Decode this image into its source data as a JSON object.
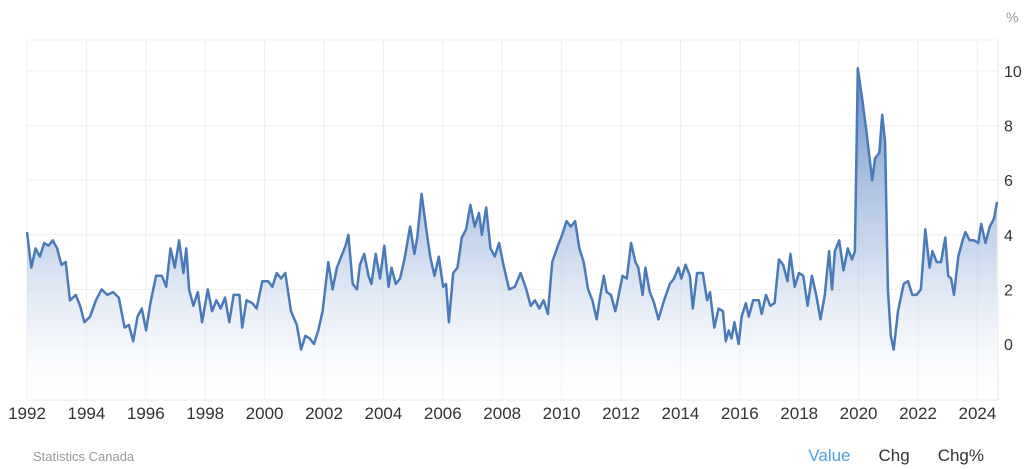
{
  "chart_data": {
    "type": "area",
    "title": "",
    "xlabel": "",
    "ylabel": "",
    "unit": "%",
    "xlim": [
      1992,
      2024.7
    ],
    "ylim": [
      -2,
      11
    ],
    "grid": true,
    "x_ticks": [
      "1992",
      "1994",
      "1996",
      "1998",
      "2000",
      "2002",
      "2004",
      "2006",
      "2008",
      "2010",
      "2012",
      "2014",
      "2016",
      "2018",
      "2020",
      "2022",
      "2024"
    ],
    "y_ticks": [
      "0",
      "2",
      "4",
      "6",
      "8",
      "10"
    ],
    "series": [
      {
        "name": "Value",
        "color": "#4a7ab8",
        "points": [
          [
            1992.0,
            4.1
          ],
          [
            1992.15,
            2.8
          ],
          [
            1992.3,
            3.5
          ],
          [
            1992.45,
            3.2
          ],
          [
            1992.6,
            3.7
          ],
          [
            1992.75,
            3.6
          ],
          [
            1992.9,
            3.8
          ],
          [
            1993.05,
            3.5
          ],
          [
            1993.2,
            2.9
          ],
          [
            1993.35,
            3.0
          ],
          [
            1993.5,
            1.6
          ],
          [
            1993.7,
            1.8
          ],
          [
            1993.85,
            1.4
          ],
          [
            1994.0,
            0.8
          ],
          [
            1994.2,
            1.0
          ],
          [
            1994.4,
            1.6
          ],
          [
            1994.6,
            2.0
          ],
          [
            1994.8,
            1.8
          ],
          [
            1995.0,
            1.9
          ],
          [
            1995.2,
            1.7
          ],
          [
            1995.4,
            0.6
          ],
          [
            1995.55,
            0.7
          ],
          [
            1995.7,
            0.1
          ],
          [
            1995.85,
            1.0
          ],
          [
            1996.0,
            1.3
          ],
          [
            1996.15,
            0.5
          ],
          [
            1996.3,
            1.5
          ],
          [
            1996.5,
            2.5
          ],
          [
            1996.7,
            2.5
          ],
          [
            1996.85,
            2.1
          ],
          [
            1997.0,
            3.5
          ],
          [
            1997.15,
            2.8
          ],
          [
            1997.3,
            3.8
          ],
          [
            1997.45,
            2.6
          ],
          [
            1997.55,
            3.5
          ],
          [
            1997.65,
            2.0
          ],
          [
            1997.8,
            1.4
          ],
          [
            1997.95,
            1.9
          ],
          [
            1998.1,
            0.8
          ],
          [
            1998.3,
            2.0
          ],
          [
            1998.45,
            1.2
          ],
          [
            1998.6,
            1.6
          ],
          [
            1998.75,
            1.3
          ],
          [
            1998.9,
            1.7
          ],
          [
            1999.05,
            0.8
          ],
          [
            1999.2,
            1.8
          ],
          [
            1999.4,
            1.8
          ],
          [
            1999.5,
            0.6
          ],
          [
            1999.65,
            1.6
          ],
          [
            1999.85,
            1.5
          ],
          [
            2000.0,
            1.3
          ],
          [
            2000.2,
            2.3
          ],
          [
            2000.4,
            2.3
          ],
          [
            2000.55,
            2.1
          ],
          [
            2000.7,
            2.6
          ],
          [
            2000.85,
            2.4
          ],
          [
            2001.0,
            2.6
          ],
          [
            2001.2,
            1.2
          ],
          [
            2001.4,
            0.7
          ],
          [
            2001.55,
            -0.2
          ],
          [
            2001.7,
            0.3
          ],
          [
            2001.85,
            0.2
          ],
          [
            2002.0,
            0.0
          ],
          [
            2002.15,
            0.5
          ],
          [
            2002.3,
            1.2
          ],
          [
            2002.5,
            3.0
          ],
          [
            2002.65,
            2.0
          ],
          [
            2002.8,
            2.8
          ],
          [
            2002.95,
            3.2
          ],
          [
            2003.1,
            3.6
          ],
          [
            2003.2,
            4.0
          ],
          [
            2003.35,
            2.2
          ],
          [
            2003.5,
            2.0
          ],
          [
            2003.6,
            2.9
          ],
          [
            2003.75,
            3.3
          ],
          [
            2003.9,
            2.5
          ],
          [
            2004.0,
            2.2
          ],
          [
            2004.15,
            3.3
          ],
          [
            2004.3,
            2.4
          ],
          [
            2004.45,
            3.6
          ],
          [
            2004.6,
            2.1
          ],
          [
            2004.7,
            2.8
          ],
          [
            2004.85,
            2.2
          ],
          [
            2005.0,
            2.4
          ],
          [
            2005.15,
            3.1
          ],
          [
            2005.35,
            4.3
          ],
          [
            2005.5,
            3.3
          ],
          [
            2005.6,
            3.9
          ],
          [
            2005.75,
            5.5
          ],
          [
            2005.9,
            4.3
          ],
          [
            2006.05,
            3.2
          ],
          [
            2006.2,
            2.5
          ],
          [
            2006.35,
            3.2
          ],
          [
            2006.5,
            2.1
          ],
          [
            2006.6,
            2.2
          ],
          [
            2006.7,
            0.8
          ],
          [
            2006.85,
            2.6
          ],
          [
            2007.0,
            2.8
          ],
          [
            2007.15,
            3.9
          ],
          [
            2007.3,
            4.2
          ],
          [
            2007.45,
            5.1
          ],
          [
            2007.6,
            4.3
          ],
          [
            2007.75,
            4.8
          ],
          [
            2007.85,
            4.0
          ],
          [
            2008.0,
            5.0
          ],
          [
            2008.15,
            3.5
          ],
          [
            2008.3,
            3.2
          ],
          [
            2008.45,
            3.7
          ],
          [
            2008.6,
            2.9
          ],
          [
            2008.8,
            2.0
          ],
          [
            2009.0,
            2.1
          ],
          [
            2009.2,
            2.6
          ],
          [
            2009.4,
            2.0
          ],
          [
            2009.55,
            1.4
          ],
          [
            2009.7,
            1.6
          ],
          [
            2009.85,
            1.3
          ],
          [
            2010.0,
            1.6
          ],
          [
            2010.15,
            1.1
          ],
          [
            2010.3,
            3.0
          ],
          [
            2010.5,
            3.6
          ],
          [
            2010.65,
            4.0
          ],
          [
            2010.8,
            4.5
          ],
          [
            2010.95,
            4.3
          ],
          [
            2011.1,
            4.5
          ],
          [
            2011.25,
            3.5
          ],
          [
            2011.4,
            3.0
          ],
          [
            2011.55,
            2.0
          ],
          [
            2011.7,
            1.6
          ],
          [
            2011.85,
            0.9
          ],
          [
            2011.95,
            1.6
          ],
          [
            2012.1,
            2.5
          ],
          [
            2012.2,
            1.9
          ],
          [
            2012.35,
            1.8
          ],
          [
            2012.5,
            1.2
          ],
          [
            2012.6,
            1.7
          ],
          [
            2012.75,
            2.5
          ],
          [
            2012.9,
            2.4
          ],
          [
            2013.05,
            3.7
          ],
          [
            2013.2,
            3.0
          ],
          [
            2013.3,
            2.8
          ],
          [
            2013.45,
            1.8
          ],
          [
            2013.55,
            2.8
          ],
          [
            2013.7,
            1.9
          ],
          [
            2013.85,
            1.5
          ],
          [
            2014.0,
            0.9
          ],
          [
            2014.2,
            1.6
          ],
          [
            2014.4,
            2.2
          ],
          [
            2014.55,
            2.4
          ],
          [
            2014.7,
            2.8
          ],
          [
            2014.8,
            2.4
          ],
          [
            2014.95,
            2.9
          ],
          [
            2015.1,
            2.5
          ],
          [
            2015.2,
            1.3
          ],
          [
            2015.35,
            2.6
          ],
          [
            2015.55,
            2.6
          ],
          [
            2015.7,
            1.6
          ],
          [
            2015.8,
            1.9
          ],
          [
            2015.95,
            0.6
          ],
          [
            2016.1,
            1.3
          ],
          [
            2016.25,
            1.2
          ],
          [
            2016.35,
            0.1
          ],
          [
            2016.45,
            0.5
          ],
          [
            2016.55,
            0.2
          ],
          [
            2016.65,
            0.8
          ],
          [
            2016.8,
            0.0
          ],
          [
            2016.9,
            1.0
          ],
          [
            2017.05,
            1.5
          ],
          [
            2017.15,
            1.0
          ],
          [
            2017.3,
            1.6
          ],
          [
            2017.5,
            1.6
          ],
          [
            2017.6,
            1.1
          ],
          [
            2017.75,
            1.8
          ],
          [
            2017.9,
            1.4
          ],
          [
            2018.05,
            1.5
          ],
          [
            2018.2,
            3.1
          ],
          [
            2018.35,
            2.9
          ],
          [
            2018.5,
            2.3
          ],
          [
            2018.6,
            3.3
          ],
          [
            2018.75,
            2.1
          ],
          [
            2018.9,
            2.6
          ],
          [
            2019.05,
            2.5
          ],
          [
            2019.2,
            1.4
          ],
          [
            2019.35,
            2.5
          ],
          [
            2019.5,
            1.8
          ],
          [
            2019.65,
            0.9
          ],
          [
            2019.8,
            1.8
          ],
          [
            2019.95,
            3.4
          ],
          [
            2020.05,
            2.0
          ],
          [
            2020.15,
            3.4
          ],
          [
            2020.3,
            3.8
          ],
          [
            2020.45,
            2.7
          ],
          [
            2020.6,
            3.5
          ],
          [
            2020.75,
            3.1
          ],
          [
            2020.85,
            3.4
          ],
          [
            2020.95,
            10.1
          ],
          [
            2021.1,
            9.0
          ],
          [
            2021.25,
            7.8
          ],
          [
            2021.45,
            6.0
          ],
          [
            2021.55,
            6.8
          ],
          [
            2021.7,
            7.0
          ],
          [
            2021.8,
            8.4
          ],
          [
            2021.9,
            7.4
          ],
          [
            2022.0,
            2.0
          ],
          [
            2022.1,
            0.3
          ],
          [
            2022.2,
            -0.2
          ],
          [
            2022.35,
            1.2
          ],
          [
            2022.55,
            2.2
          ],
          [
            2022.7,
            2.3
          ],
          [
            2022.85,
            1.8
          ],
          [
            2023.0,
            1.8
          ],
          [
            2023.15,
            2.0
          ],
          [
            2023.3,
            4.2
          ],
          [
            2023.45,
            2.8
          ],
          [
            2023.55,
            3.4
          ],
          [
            2023.7,
            3.0
          ],
          [
            2023.85,
            3.0
          ],
          [
            2024.0,
            3.9
          ],
          [
            2024.1,
            2.5
          ],
          [
            2024.2,
            2.4
          ],
          [
            2024.3,
            1.8
          ],
          [
            2024.45,
            3.2
          ],
          [
            2024.6,
            3.8
          ],
          [
            2024.7,
            4.1
          ],
          [
            2024.85,
            3.8
          ],
          [
            2025.0,
            3.8
          ],
          [
            2025.15,
            3.7
          ],
          [
            2025.25,
            4.4
          ],
          [
            2025.4,
            3.7
          ],
          [
            2025.55,
            4.3
          ],
          [
            2025.7,
            4.6
          ],
          [
            2025.8,
            5.2
          ]
        ]
      }
    ]
  },
  "axis": {
    "unit_label": "%",
    "y_ticks": [
      "0",
      "2",
      "4",
      "6",
      "8",
      "10"
    ],
    "x_ticks": [
      "1992",
      "1994",
      "1996",
      "1998",
      "2000",
      "2002",
      "2004",
      "2006",
      "2008",
      "2010",
      "2012",
      "2014",
      "2016",
      "2018",
      "2020",
      "2022",
      "2024"
    ]
  },
  "footer": {
    "source": "Statistics Canada",
    "toggles": [
      {
        "label": "Value",
        "active": true
      },
      {
        "label": "Chg",
        "active": false
      },
      {
        "label": "Chg%",
        "active": false
      }
    ]
  },
  "colors": {
    "line": "#4a7ab8",
    "fill_top": "#6f95c8",
    "fill_bottom": "#ffffff",
    "active_toggle": "#4aa3df",
    "grid": "#eeeeee"
  }
}
